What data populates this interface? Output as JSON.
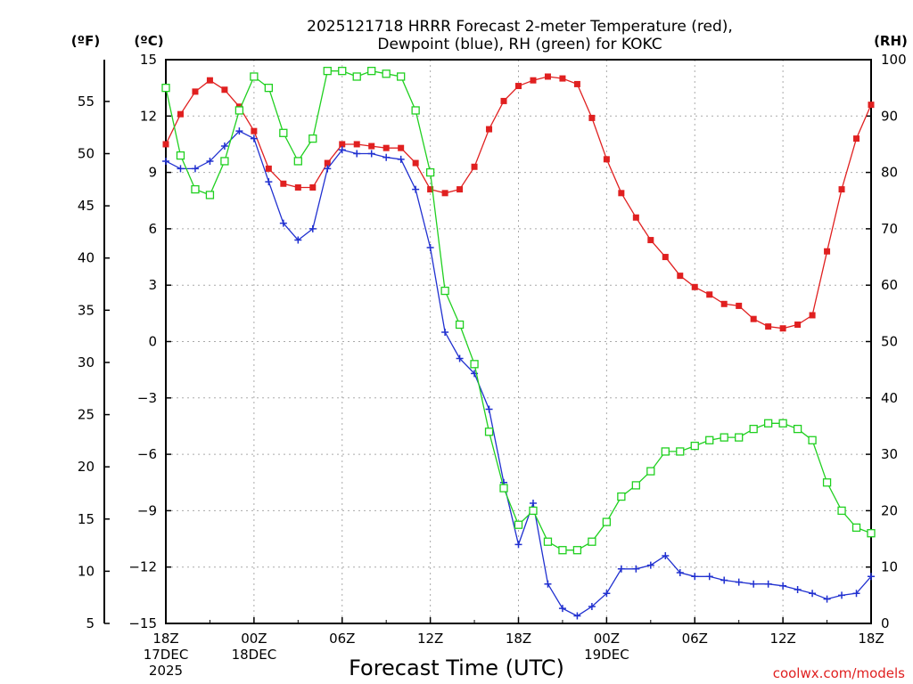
{
  "chart_data": {
    "type": "line",
    "title": [
      "2025121718 HRRR Forecast 2-meter Temperature (red),",
      "Dewpoint (blue), RH (green) for KOKC"
    ],
    "xlabel": "Forecast Time (UTC)",
    "credit": "coolwx.com/models",
    "unit_labels": {
      "fahrenheit": "(ºF)",
      "celsius": "(ºC)",
      "rh": "(RH)"
    },
    "x_range": [
      0,
      48
    ],
    "x_ticks": [
      {
        "x": 0,
        "lines": [
          "18Z",
          "17DEC",
          "2025"
        ]
      },
      {
        "x": 6,
        "lines": [
          "00Z",
          "18DEC"
        ]
      },
      {
        "x": 12,
        "lines": [
          "06Z"
        ]
      },
      {
        "x": 18,
        "lines": [
          "12Z"
        ]
      },
      {
        "x": 24,
        "lines": [
          "18Z"
        ]
      },
      {
        "x": 30,
        "lines": [
          "00Z",
          "19DEC"
        ]
      },
      {
        "x": 36,
        "lines": [
          "06Z"
        ]
      },
      {
        "x": 42,
        "lines": [
          "12Z"
        ]
      },
      {
        "x": 48,
        "lines": [
          "18Z"
        ]
      }
    ],
    "celsius_range": [
      -15.0,
      15.0
    ],
    "celsius_ticks": [
      -15,
      -12,
      -9,
      -6,
      -3,
      0,
      3,
      6,
      9,
      12,
      15
    ],
    "celsius_tick_labels": [
      "−15",
      "−12",
      "−9",
      "−6",
      "−3",
      "0",
      "3",
      "6",
      "9",
      "12",
      "15"
    ],
    "fahrenheit_ticks": [
      5,
      10,
      15,
      20,
      25,
      30,
      35,
      40,
      45,
      50,
      55
    ],
    "rh_range": [
      0,
      100
    ],
    "rh_ticks": [
      0,
      10,
      20,
      30,
      40,
      50,
      60,
      70,
      80,
      90,
      100
    ],
    "grid": true,
    "series": [
      {
        "name": "Temperature",
        "axis": "celsius",
        "color": "#e02020",
        "marker": "filled-square",
        "values": [
          10.5,
          12.1,
          13.3,
          13.9,
          13.4,
          12.5,
          11.2,
          9.2,
          8.4,
          8.2,
          8.2,
          9.5,
          10.5,
          10.5,
          10.4,
          10.3,
          10.3,
          9.5,
          8.1,
          7.9,
          8.1,
          9.3,
          11.3,
          12.8,
          13.6,
          13.9,
          14.1,
          14.0,
          13.7,
          11.9,
          9.7,
          7.9,
          6.6,
          5.4,
          4.5,
          3.5,
          2.9,
          2.5,
          2.0,
          1.9,
          1.2,
          0.8,
          0.7,
          0.9,
          1.4,
          4.8,
          8.1,
          10.8,
          12.6
        ]
      },
      {
        "name": "Dewpoint",
        "axis": "celsius",
        "color": "#2030d0",
        "marker": "plus",
        "values": [
          9.6,
          9.2,
          9.2,
          9.6,
          10.4,
          11.2,
          10.8,
          8.5,
          6.3,
          5.4,
          6.0,
          9.2,
          10.2,
          10.0,
          10.0,
          9.8,
          9.7,
          8.1,
          5.0,
          0.5,
          -0.9,
          -1.7,
          -3.6,
          -7.5,
          -10.8,
          -8.6,
          -12.9,
          -14.2,
          -14.6,
          -14.1,
          -13.4,
          -12.1,
          -12.1,
          -11.9,
          -11.4,
          -12.3,
          -12.5,
          -12.5,
          -12.7,
          -12.8,
          -12.9,
          -12.9,
          -13.0,
          -13.2,
          -13.4,
          -13.7,
          -13.5,
          -13.4,
          -12.5
        ]
      },
      {
        "name": "RH",
        "axis": "rh",
        "color": "#20d020",
        "marker": "open-square",
        "values": [
          95,
          83,
          77,
          76,
          82,
          91,
          97,
          95,
          87,
          82,
          86,
          98,
          98,
          97,
          98,
          97.5,
          97,
          91,
          80,
          59,
          53,
          46,
          34,
          24,
          17.5,
          20,
          14.5,
          13,
          13,
          14.5,
          18,
          22.5,
          24.5,
          27,
          30.5,
          30.5,
          31.5,
          32.5,
          33,
          33,
          34.5,
          35.5,
          35.5,
          34.5,
          32.5,
          25,
          20,
          17,
          16
        ]
      }
    ]
  }
}
